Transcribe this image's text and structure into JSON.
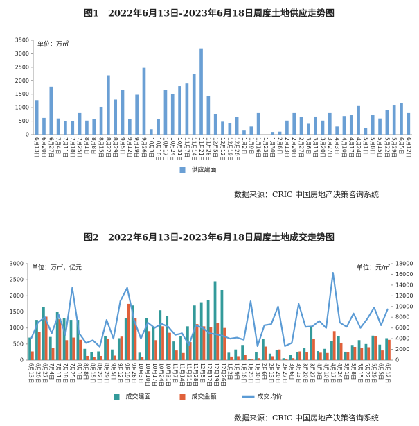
{
  "chart_data": [
    {
      "type": "bar",
      "title": "图1　2022年6月13日-2023年6月18日周度土地供应走势图",
      "unit_label": "单位：万㎡",
      "source": "数据来源：CRIC 中国房地产决策咨询系统",
      "categories": [
        "6月13日",
        "6月20日",
        "6月27日",
        "7月4日",
        "7月11日",
        "7月18日",
        "7月25日",
        "8月1日",
        "8月8日",
        "8月15日",
        "8月22日",
        "8月29日",
        "9月5日",
        "9月12日",
        "9月19日",
        "9月26日",
        "10月3日",
        "10月10日",
        "10月17日",
        "10月24日",
        "10月31日",
        "11月7日",
        "11月14日",
        "11月21日",
        "11月28日",
        "12月5日",
        "12月12日",
        "12月19日",
        "12月26日",
        "1月2日",
        "1月9日",
        "1月16日",
        "1月23日",
        "1月30日",
        "2月6日",
        "2月13日",
        "2月20日",
        "2月27日",
        "3月6日",
        "3月13日",
        "3月20日",
        "3月27日",
        "4月3日",
        "4月10日",
        "4月17日",
        "4月24日",
        "5月1日",
        "5月8日",
        "5月15日",
        "5月22日",
        "5月29日",
        "6月5日",
        "6月12日"
      ],
      "series": [
        {
          "name": "供应建面",
          "color": "#6a9fd4",
          "values": [
            1280,
            620,
            1780,
            600,
            490,
            490,
            800,
            520,
            570,
            1030,
            2200,
            1300,
            1650,
            580,
            1480,
            2480,
            200,
            580,
            1650,
            1500,
            1800,
            1900,
            2250,
            3200,
            1430,
            750,
            480,
            430,
            650,
            150,
            300,
            800,
            0,
            100,
            110,
            520,
            800,
            660,
            400,
            670,
            520,
            800,
            300,
            690,
            720,
            1060,
            250,
            720,
            600,
            920,
            1080,
            1180,
            800
          ]
        }
      ],
      "ylim": [
        0,
        3500
      ],
      "yticks": [
        0,
        500,
        1000,
        1500,
        2000,
        2500,
        3000,
        3500
      ]
    },
    {
      "type": "combo",
      "title": "图2　2022年6月13日-2023年6月18日周度土地成交走势图",
      "unit_label": "单位：万㎡，亿元",
      "unit_label_right": "单位：元/㎡",
      "source": "数据来源：CRIC 中国房地产决策咨询系统",
      "categories": [
        "6月13日",
        "6月20日",
        "6月27日",
        "7月4日",
        "7月11日",
        "7月18日",
        "7月25日",
        "8月1日",
        "8月8日",
        "8月15日",
        "8月22日",
        "8月29日",
        "9月5日",
        "9月12日",
        "9月19日",
        "9月26日",
        "10月3日",
        "10月10日",
        "10月17日",
        "10月24日",
        "10月31日",
        "11月7日",
        "11月14日",
        "11月21日",
        "11月28日",
        "12月5日",
        "12月12日",
        "12月19日",
        "12月26日",
        "1月2日",
        "1月9日",
        "1月16日",
        "1月23日",
        "1月30日",
        "2月6日",
        "2月13日",
        "2月20日",
        "2月27日",
        "3月6日",
        "3月13日",
        "3月20日",
        "3月27日",
        "4月3日",
        "4月10日",
        "4月17日",
        "4月24日",
        "5月1日",
        "5月8日",
        "5月15日",
        "5月22日",
        "5月29日",
        "6月5日",
        "6月12日"
      ],
      "series": [
        {
          "name": "成交建面",
          "color": "#339a9a",
          "kind": "bar",
          "values": [
            700,
            1250,
            1650,
            720,
            1500,
            1300,
            1250,
            1250,
            350,
            250,
            270,
            750,
            330,
            680,
            1300,
            1700,
            230,
            1300,
            1050,
            1550,
            1380,
            580,
            750,
            1050,
            1700,
            1800,
            1870,
            2450,
            2180,
            230,
            330,
            470,
            30,
            250,
            650,
            200,
            320,
            60,
            160,
            250,
            380,
            1050,
            280,
            350,
            590,
            750,
            260,
            470,
            620,
            500,
            760,
            480,
            680
          ]
        },
        {
          "name": "成交金额",
          "color": "#e0603a",
          "kind": "bar",
          "values": [
            270,
            870,
            1350,
            380,
            1270,
            620,
            700,
            630,
            130,
            100,
            130,
            650,
            140,
            730,
            1750,
            1300,
            100,
            900,
            620,
            1050,
            850,
            300,
            220,
            560,
            1120,
            1050,
            1020,
            1150,
            1000,
            110,
            120,
            170,
            20,
            60,
            420,
            120,
            330,
            20,
            60,
            270,
            250,
            660,
            230,
            220,
            900,
            540,
            240,
            410,
            380,
            400,
            740,
            300,
            630
          ]
        },
        {
          "name": "成交均价",
          "color": "#5b9bd5",
          "kind": "line",
          "axis": "y2",
          "values": [
            4000,
            7000,
            8000,
            5000,
            8500,
            4700,
            13500,
            5000,
            3200,
            3700,
            2500,
            7500,
            4000,
            11000,
            13500,
            7500,
            4000,
            7000,
            6000,
            6800,
            6200,
            4700,
            5000,
            2800,
            6500,
            6000,
            5000,
            4800,
            4500,
            4000,
            4200,
            3800,
            11000,
            2600,
            6500,
            6700,
            10000,
            2600,
            3200,
            10500,
            6200,
            6300,
            7300,
            6000,
            16300,
            7000,
            6200,
            8700,
            6000,
            7700,
            9800,
            6500,
            9600
          ]
        }
      ],
      "ylim": [
        0,
        3000
      ],
      "yticks": [
        0,
        500,
        1000,
        1500,
        2000,
        2500,
        3000
      ],
      "y2lim": [
        0,
        18000
      ],
      "y2ticks": [
        0,
        2000,
        4000,
        6000,
        8000,
        10000,
        12000,
        14000,
        16000,
        18000
      ]
    }
  ]
}
